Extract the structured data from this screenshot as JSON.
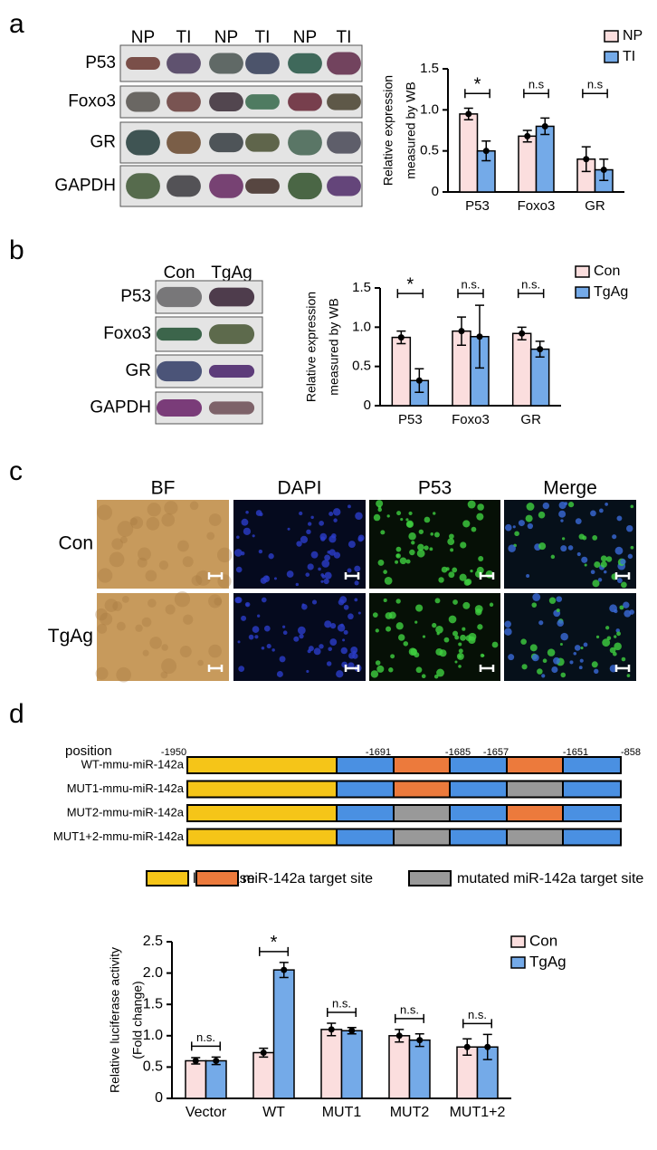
{
  "panels": {
    "a": {
      "label": "a",
      "lanes": [
        "NP",
        "TI",
        "NP",
        "TI",
        "NP",
        "TI"
      ],
      "proteins": [
        "P53",
        "Foxo3",
        "GR",
        "GAPDH"
      ]
    },
    "b": {
      "label": "b",
      "lanes": [
        "Con",
        "TgAg"
      ],
      "proteins": [
        "P53",
        "Foxo3",
        "GR",
        "GAPDH"
      ]
    },
    "c": {
      "label": "c",
      "columns": [
        "BF",
        "DAPI",
        "P53",
        "Merge"
      ],
      "rows": [
        "Con",
        "TgAg"
      ]
    },
    "d": {
      "label": "d",
      "position_label": "position",
      "positions": [
        "-1950",
        "-1691",
        "-1685",
        "-1657",
        "-1651",
        "-858"
      ],
      "constructs": [
        "WT-mmu-miR-142a",
        "MUT1-mmu-miR-142a",
        "MUT2-mmu-miR-142a",
        "MUT1+2-mmu-miR-142a"
      ],
      "legend": [
        "luciferase",
        "miR-142a target site",
        "mutated miR-142a target site"
      ]
    }
  },
  "chart_data": [
    {
      "type": "bar",
      "ylabel": [
        "Relative expression",
        "measured by WB"
      ],
      "categories": [
        "P53",
        "Foxo3",
        "GR"
      ],
      "series": [
        {
          "name": "NP",
          "color": "#fbdede",
          "values": [
            0.95,
            0.68,
            0.4
          ],
          "errors": [
            0.07,
            0.07,
            0.15
          ]
        },
        {
          "name": "TI",
          "color": "#74aae8",
          "values": [
            0.5,
            0.8,
            0.27
          ],
          "errors": [
            0.12,
            0.1,
            0.13
          ]
        }
      ],
      "annotations": [
        "*",
        "n.s",
        "n.s"
      ],
      "ylim": [
        0,
        1.5
      ],
      "yticks": [
        0,
        0.5,
        {
          "value": 1,
          "label": "1.0"
        },
        1.5
      ]
    },
    {
      "type": "bar",
      "ylabel": [
        "Relative expression",
        "measured by WB"
      ],
      "categories": [
        "P53",
        "Foxo3",
        "GR"
      ],
      "series": [
        {
          "name": "Con",
          "color": "#fbdede",
          "values": [
            0.87,
            0.95,
            0.92
          ],
          "errors": [
            0.08,
            0.18,
            0.08
          ]
        },
        {
          "name": "TgAg",
          "color": "#74aae8",
          "values": [
            0.32,
            0.88,
            0.72
          ],
          "errors": [
            0.15,
            0.4,
            0.1
          ]
        }
      ],
      "annotations": [
        "*",
        "n.s.",
        "n.s."
      ],
      "ylim": [
        0,
        1.5
      ],
      "yticks": [
        0,
        0.5,
        {
          "value": 1,
          "label": "1.0"
        },
        1.5
      ]
    },
    {
      "type": "bar",
      "ylabel": [
        "Relative luciferase activity",
        "(Fold change)"
      ],
      "categories": [
        "Vector",
        "WT",
        "MUT1",
        "MUT2",
        "MUT1+2"
      ],
      "series": [
        {
          "name": "Con",
          "color": "#fbdede",
          "values": [
            0.6,
            0.73,
            1.1,
            1.0,
            0.82
          ],
          "errors": [
            0.05,
            0.07,
            0.1,
            0.1,
            0.13
          ]
        },
        {
          "name": "TgAg",
          "color": "#74aae8",
          "values": [
            0.6,
            2.05,
            1.08,
            0.93,
            0.82
          ],
          "errors": [
            0.06,
            0.12,
            0.05,
            0.1,
            0.2
          ]
        }
      ],
      "annotations": [
        "n.s.",
        "*",
        "n.s.",
        "n.s.",
        "n.s."
      ],
      "ylim": [
        0,
        2.5
      ],
      "yticks": [
        0,
        0.5,
        {
          "value": 1,
          "label": "1.0"
        },
        1.5,
        {
          "value": 2,
          "label": "2.0"
        },
        2.5
      ]
    }
  ]
}
